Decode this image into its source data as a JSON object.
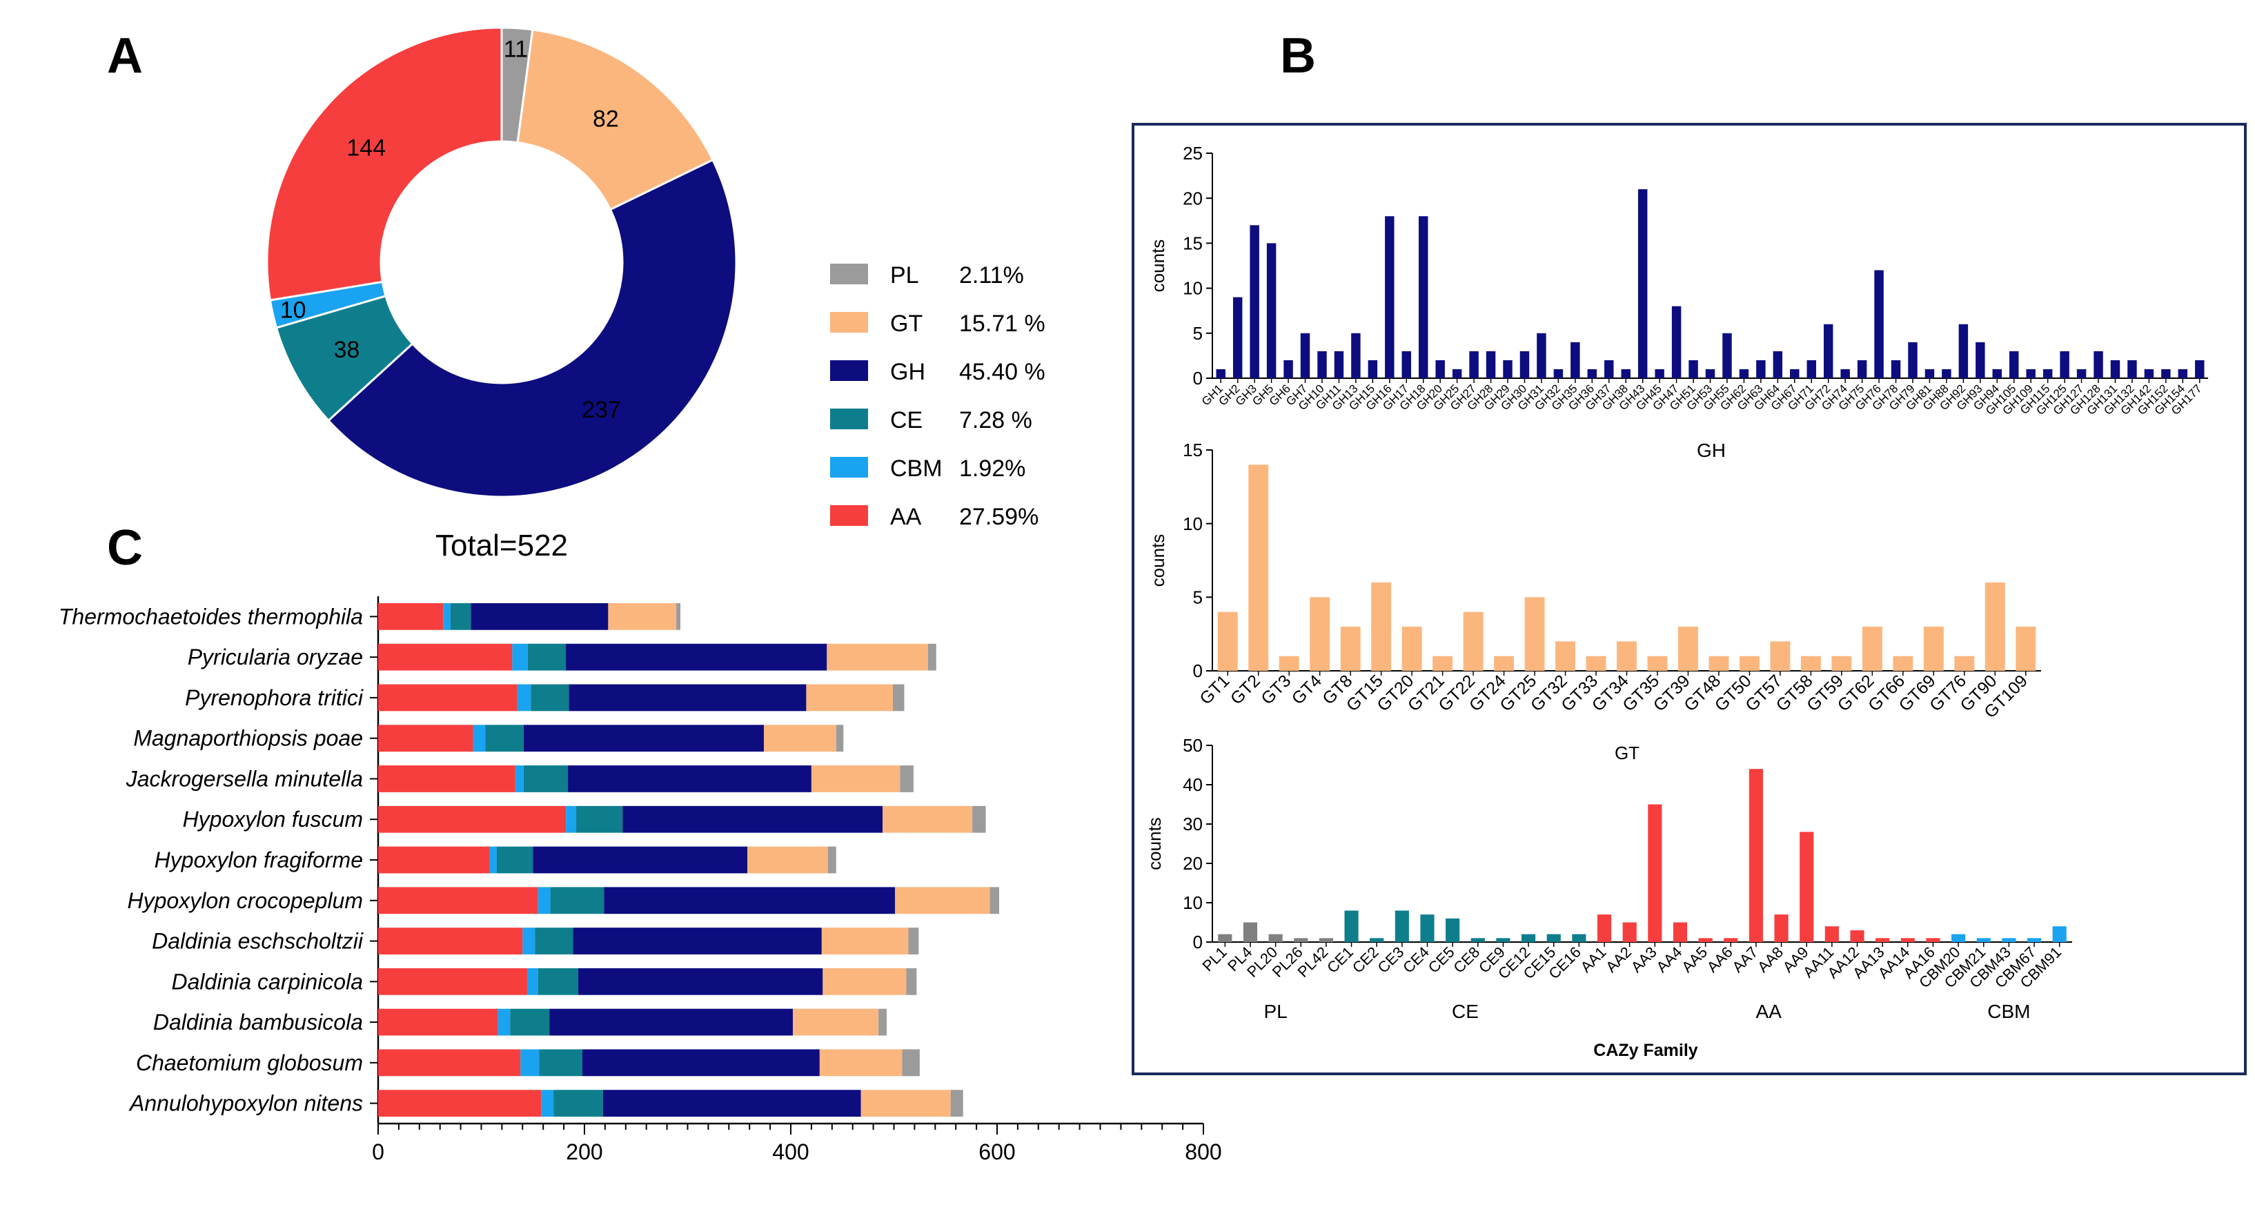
{
  "panel_labels": {
    "a": "A",
    "b": "B",
    "c": "C"
  },
  "chart_data": [
    {
      "panel": "A",
      "type": "pie",
      "subtype": "donut",
      "total_label": "Total=522",
      "slices": [
        {
          "name": "PL",
          "value": 11,
          "percent_label": "2.11%",
          "color": "#9b9b9b"
        },
        {
          "name": "GT",
          "value": 82,
          "percent_label": "15.71 %",
          "color": "#fbb67e"
        },
        {
          "name": "GH",
          "value": 237,
          "percent_label": "45.40 %",
          "color": "#0d0d80"
        },
        {
          "name": "CE",
          "value": 38,
          "percent_label": "7.28 %",
          "color": "#0f7e8c"
        },
        {
          "name": "CBM",
          "value": 10,
          "percent_label": "1.92%",
          "color": "#1aa3f0"
        },
        {
          "name": "AA",
          "value": 144,
          "percent_label": "27.59%",
          "color": "#f73e3e"
        }
      ]
    },
    {
      "panel": "B-GH",
      "type": "bar",
      "color": "#0d0d80",
      "ylabel": "counts",
      "xlabel": "GH",
      "ylim": [
        0,
        25
      ],
      "yticks": [
        0,
        5,
        10,
        15,
        20,
        25
      ],
      "categories": [
        "GH1",
        "GH2",
        "GH3",
        "GH5",
        "GH6",
        "GH7",
        "GH10",
        "GH11",
        "GH13",
        "GH15",
        "GH16",
        "GH17",
        "GH18",
        "GH20",
        "GH25",
        "GH27",
        "GH28",
        "GH29",
        "GH30",
        "GH31",
        "GH32",
        "GH35",
        "GH36",
        "GH37",
        "GH38",
        "GH43",
        "GH45",
        "GH47",
        "GH51",
        "GH53",
        "GH55",
        "GH62",
        "GH63",
        "GH64",
        "GH67",
        "GH71",
        "GH72",
        "GH74",
        "GH75",
        "GH76",
        "GH78",
        "GH79",
        "GH81",
        "GH88",
        "GH92",
        "GH93",
        "GH94",
        "GH105",
        "GH109",
        "GH115",
        "GH125",
        "GH127",
        "GH128",
        "GH131",
        "GH132",
        "GH142",
        "GH152",
        "GH154",
        "GH177"
      ],
      "values": [
        1,
        9,
        17,
        15,
        2,
        5,
        3,
        3,
        5,
        2,
        18,
        3,
        18,
        2,
        1,
        3,
        3,
        2,
        3,
        5,
        1,
        4,
        1,
        2,
        1,
        21,
        1,
        8,
        2,
        1,
        5,
        1,
        2,
        3,
        1,
        2,
        6,
        1,
        2,
        12,
        2,
        4,
        1,
        1,
        6,
        4,
        1,
        3,
        1,
        1,
        3,
        1,
        3,
        2,
        2,
        1,
        1,
        1,
        2
      ]
    },
    {
      "panel": "B-GT",
      "type": "bar",
      "color": "#fbb67e",
      "ylabel": "counts",
      "xlabel": "GT",
      "ylim": [
        0,
        15
      ],
      "yticks": [
        0,
        5,
        10,
        15
      ],
      "categories": [
        "GT1",
        "GT2",
        "GT3",
        "GT4",
        "GT8",
        "GT15",
        "GT20",
        "GT21",
        "GT22",
        "GT24",
        "GT25",
        "GT32",
        "GT33",
        "GT34",
        "GT35",
        "GT39",
        "GT48",
        "GT50",
        "GT57",
        "GT58",
        "GT59",
        "GT62",
        "GT66",
        "GT69",
        "GT76",
        "GT90",
        "GT109"
      ],
      "values": [
        4,
        14,
        1,
        5,
        3,
        6,
        3,
        1,
        4,
        1,
        5,
        2,
        1,
        2,
        1,
        3,
        1,
        1,
        2,
        1,
        1,
        3,
        1,
        3,
        1,
        6,
        3
      ]
    },
    {
      "panel": "B-other",
      "type": "bar",
      "ylabel": "counts",
      "xlabel": "CAZy Family",
      "ylim": [
        0,
        50
      ],
      "yticks": [
        0,
        10,
        20,
        30,
        40,
        50
      ],
      "groups": [
        {
          "name": "PL",
          "color": "#808080",
          "categories": [
            "PL1",
            "PL4",
            "PL20",
            "PL26",
            "PL42"
          ],
          "values": [
            2,
            5,
            2,
            1,
            1
          ]
        },
        {
          "name": "CE",
          "color": "#0f7e8c",
          "categories": [
            "CE1",
            "CE2",
            "CE3",
            "CE4",
            "CE5",
            "CE8",
            "CE9",
            "CE12",
            "CE15",
            "CE16"
          ],
          "values": [
            8,
            1,
            8,
            7,
            6,
            1,
            1,
            2,
            2,
            2
          ]
        },
        {
          "name": "AA",
          "color": "#f73e3e",
          "categories": [
            "AA1",
            "AA2",
            "AA3",
            "AA4",
            "AA5",
            "AA6",
            "AA7",
            "AA8",
            "AA9",
            "AA11",
            "AA12",
            "AA13",
            "AA14",
            "AA16"
          ],
          "values": [
            7,
            5,
            35,
            5,
            1,
            1,
            44,
            7,
            28,
            4,
            3,
            1,
            1,
            1
          ]
        },
        {
          "name": "CBM",
          "color": "#1aa3f0",
          "categories": [
            "CBM20",
            "CBM21",
            "CBM43",
            "CBM67",
            "CBM91"
          ],
          "values": [
            2,
            1,
            1,
            1,
            4
          ]
        }
      ]
    },
    {
      "panel": "C",
      "type": "bar",
      "orientation": "horizontal",
      "stacked": true,
      "xlim": [
        0,
        800
      ],
      "xticks": [
        0,
        200,
        400,
        600,
        800
      ],
      "categories": [
        "Thermochaetoides thermophila",
        "Pyricularia oryzae",
        "Pyrenophora tritici",
        "Magnaporthiopsis poae",
        "Jackrogersella minutella",
        "Hypoxylon fuscum",
        "Hypoxylon fragiforme",
        "Hypoxylon crocopeplum",
        "Daldinia eschscholtzii",
        "Daldinia carpinicola",
        "Daldinia bambusicola",
        "Chaetomium globosum",
        "Annulohypoxylon nitens"
      ],
      "series": [
        {
          "name": "AA",
          "color": "#f73e3e",
          "values": [
            63,
            130,
            135,
            92,
            133,
            182,
            108,
            155,
            140,
            145,
            116,
            138,
            158
          ]
        },
        {
          "name": "CBM",
          "color": "#1aa3f0",
          "values": [
            7,
            15,
            13,
            12,
            8,
            10,
            7,
            12,
            12,
            10,
            12,
            18,
            12
          ]
        },
        {
          "name": "CE",
          "color": "#0f7e8c",
          "values": [
            20,
            37,
            37,
            37,
            43,
            45,
            35,
            52,
            37,
            39,
            38,
            42,
            48
          ]
        },
        {
          "name": "GH",
          "color": "#0d0d80",
          "values": [
            133,
            253,
            230,
            233,
            236,
            252,
            208,
            282,
            241,
            237,
            236,
            230,
            250
          ]
        },
        {
          "name": "GT",
          "color": "#fbb67e",
          "values": [
            66,
            98,
            84,
            70,
            86,
            87,
            78,
            92,
            84,
            81,
            83,
            80,
            87
          ]
        },
        {
          "name": "PL",
          "color": "#9b9b9b",
          "values": [
            4,
            8,
            11,
            7,
            13,
            13,
            8,
            9,
            10,
            10,
            8,
            17,
            12
          ]
        }
      ]
    }
  ]
}
